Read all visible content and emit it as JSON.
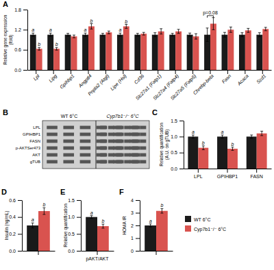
{
  "chart_data": [
    {
      "type": "bar",
      "title": "A",
      "categories": [
        "Lpl",
        "Lipg",
        "Gpihbp1",
        "Angptl4",
        "Pnpla2 (Atgl)",
        "Lipe (Hsl)",
        "Cd36",
        "Slc27a1 (Fatp1)",
        "Slc27a4 (Fatp4)",
        "Slc27a5 (Fatp5)",
        "Chrebp-beta",
        "Fasn",
        "Acaca",
        "Scd1"
      ],
      "series": [
        {
          "color": "#1a1a1a",
          "values": [
            1.05,
            1.05,
            1.05,
            1.05,
            1.05,
            1.05,
            1.05,
            1.05,
            1.05,
            1.05,
            1.05,
            1.05,
            1.05,
            1.05
          ],
          "errors": [
            0.05,
            0.05,
            0.04,
            0.05,
            0.04,
            0.05,
            0.04,
            0.06,
            0.04,
            0.05,
            0.2,
            0.07,
            0.06,
            0.06
          ]
        },
        {
          "color": "#d9534f",
          "values": [
            0.63,
            0.63,
            1.0,
            1.3,
            1.12,
            1.3,
            1.08,
            1.15,
            1.15,
            1.0,
            1.38,
            1.2,
            1.18,
            1.22
          ],
          "errors": [
            0.04,
            0.04,
            0.04,
            0.08,
            0.04,
            0.06,
            0.04,
            0.08,
            0.06,
            0.08,
            0.18,
            0.08,
            0.06,
            0.05
          ]
        }
      ],
      "annotations": [
        {
          "text": "a",
          "series": 0,
          "index": 0
        },
        {
          "text": "b",
          "series": 1,
          "index": 0
        },
        {
          "text": "a",
          "series": 0,
          "index": 1
        },
        {
          "text": "b",
          "series": 1,
          "index": 1
        },
        {
          "text": "a",
          "series": 0,
          "index": 3
        },
        {
          "text": "b",
          "series": 1,
          "index": 3
        },
        {
          "text": "a",
          "series": 0,
          "index": 5
        },
        {
          "text": "b",
          "series": 1,
          "index": 5
        },
        {
          "text": "p=0.08",
          "index": 10,
          "y": 1.62
        }
      ],
      "ylabel": "Relative gene expression\n(fold)",
      "ylim": [
        0,
        1.8
      ],
      "yticks": [
        {
          "value": 0,
          "label": "0.0"
        },
        0.6,
        1.2,
        1.8
      ]
    },
    {
      "type": "blot",
      "title": "B",
      "categories": [
        "LPL",
        "GPIHBP1",
        "FASN",
        "p-AKTSer473",
        "AKT",
        "gTUB"
      ],
      "annotations": [
        {
          "text": "WT 6°C"
        },
        {
          "text": "Cyp7b1⁻/⁻ 6°C"
        }
      ]
    },
    {
      "type": "bar",
      "title": "C",
      "categories": [
        "LPL",
        "GPIHBP1",
        "FASN"
      ],
      "series": [
        {
          "color": "#1a1a1a",
          "values": [
            1.0,
            1.0,
            1.0
          ],
          "errors": [
            0.05,
            0.05,
            0.05
          ]
        },
        {
          "color": "#d9534f",
          "values": [
            0.65,
            0.62,
            1.1
          ],
          "errors": [
            0.06,
            0.05,
            0.07
          ]
        }
      ],
      "annotations": [
        {
          "text": "a",
          "series": 0,
          "index": 0
        },
        {
          "text": "b",
          "series": 1,
          "index": 0
        },
        {
          "text": "a",
          "series": 0,
          "index": 1
        },
        {
          "text": "b",
          "series": 1,
          "index": 1
        }
      ],
      "ylabel": "Relative quantification\n(A.U. on gTUB)",
      "ylim": [
        0,
        1.5
      ],
      "yticks": [
        {
          "value": 0,
          "label": "0.0"
        },
        0.5,
        {
          "value": 1.0,
          "label": "1.0"
        },
        1.5
      ]
    },
    {
      "type": "bar",
      "title": "D",
      "categories": [
        null
      ],
      "series": [
        {
          "color": "#1a1a1a",
          "values": [
            0.3
          ],
          "errors": [
            0.03
          ]
        },
        {
          "color": "#d9534f",
          "values": [
            0.47
          ],
          "errors": [
            0.04
          ]
        }
      ],
      "annotations": [
        {
          "text": "a",
          "series": 0,
          "index": 0
        },
        {
          "text": "b",
          "series": 1,
          "index": 0
        }
      ],
      "ylabel": "Insulin (ng/mL)",
      "ylim": [
        0,
        0.6
      ],
      "yticks": [
        {
          "value": 0,
          "label": "0.0"
        },
        0.2,
        0.4,
        0.6
      ]
    },
    {
      "type": "bar",
      "title": "E",
      "categories": [
        "pAKT/AKT"
      ],
      "series": [
        {
          "color": "#1a1a1a",
          "values": [
            1.0
          ],
          "errors": [
            0.04
          ]
        },
        {
          "color": "#d9534f",
          "values": [
            0.73
          ],
          "errors": [
            0.06
          ]
        }
      ],
      "annotations": [
        {
          "text": "a",
          "series": 0,
          "index": 0
        },
        {
          "text": "b",
          "series": 1,
          "index": 0
        }
      ],
      "ylabel": "Relative quantification",
      "ylim": [
        0,
        1.5
      ],
      "yticks": [
        {
          "value": 0,
          "label": "0.0"
        },
        0.5,
        {
          "value": 1.0,
          "label": "1.0"
        },
        1.5
      ]
    },
    {
      "type": "bar",
      "title": "F",
      "categories": [
        null
      ],
      "series": [
        {
          "name": "WT 6°C",
          "color": "#1a1a1a",
          "values": [
            2.0
          ],
          "errors": [
            0.12
          ]
        },
        {
          "name": "Cyp7b1⁻/⁻ 6°C",
          "color": "#d9534f",
          "values": [
            3.15
          ],
          "errors": [
            0.18
          ]
        }
      ],
      "annotations": [
        {
          "text": "a",
          "series": 0,
          "index": 0
        },
        {
          "text": "b",
          "series": 1,
          "index": 0
        }
      ],
      "ylabel": "HOMA IR",
      "ylim": [
        0,
        4
      ],
      "yticks": [
        0,
        1,
        2,
        3,
        4
      ],
      "legend": "right"
    }
  ]
}
